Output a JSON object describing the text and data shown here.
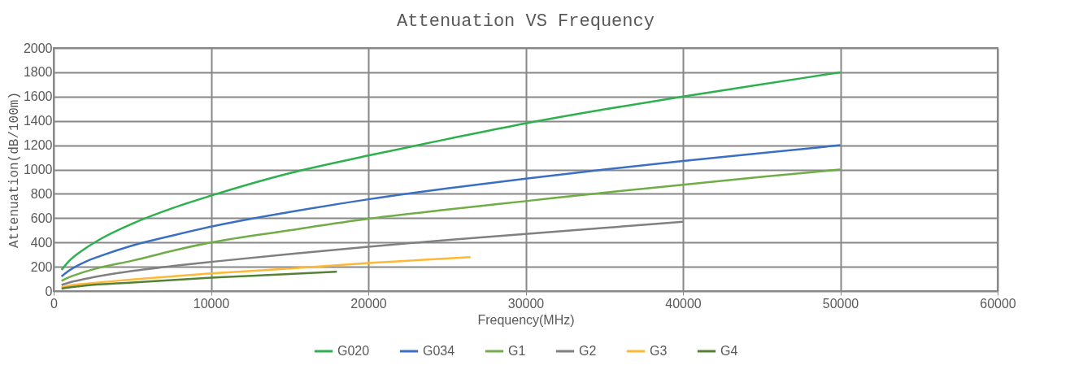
{
  "chart_data": {
    "type": "line",
    "title": "Attenuation VS Frequency",
    "xlabel": "Frequency(MHz)",
    "ylabel": "Attenuation(dB/100m)",
    "xlim": [
      0,
      60000
    ],
    "xticks": [
      0,
      10000,
      20000,
      30000,
      40000,
      50000,
      60000
    ],
    "ylim": [
      0,
      2000
    ],
    "yticks": [
      0,
      200,
      400,
      600,
      800,
      1000,
      1200,
      1400,
      1600,
      1800,
      2000
    ],
    "grid": true,
    "legend": "bottom",
    "line_style": "solid",
    "marker": "none",
    "series": [
      {
        "name": "G020",
        "color": "#2eb04f",
        "x": [
          500,
          1000,
          2000,
          3000,
          5000,
          7500,
          10000,
          15000,
          20000,
          25000,
          30000,
          35000,
          40000,
          45000,
          50000
        ],
        "values": [
          175,
          250,
          350,
          430,
          555,
          680,
          785,
          970,
          1115,
          1250,
          1380,
          1495,
          1600,
          1700,
          1800
        ]
      },
      {
        "name": "G034",
        "color": "#3b6fc4",
        "x": [
          500,
          1000,
          2000,
          3000,
          5000,
          7500,
          10000,
          15000,
          20000,
          25000,
          30000,
          35000,
          40000,
          45000,
          50000
        ],
        "values": [
          120,
          170,
          240,
          290,
          375,
          455,
          530,
          650,
          755,
          845,
          925,
          1000,
          1070,
          1135,
          1200
        ]
      },
      {
        "name": "G1",
        "color": "#70ad47",
        "x": [
          500,
          1000,
          2000,
          3000,
          5000,
          7500,
          10000,
          15000,
          20000,
          25000,
          30000,
          35000,
          40000,
          45000,
          50000
        ],
        "values": [
          85,
          115,
          160,
          195,
          250,
          330,
          400,
          500,
          595,
          670,
          740,
          810,
          875,
          940,
          1000
        ]
      },
      {
        "name": "G2",
        "color": "#808080",
        "x": [
          500,
          1000,
          2000,
          3000,
          5000,
          7500,
          10000,
          15000,
          20000,
          25000,
          30000,
          35000,
          40000
        ],
        "values": [
          50,
          70,
          100,
          125,
          165,
          205,
          240,
          305,
          365,
          420,
          470,
          520,
          570
        ]
      },
      {
        "name": "G3",
        "color": "#ffb833",
        "x": [
          500,
          1000,
          2000,
          5000,
          10000,
          15000,
          20000,
          26500
        ],
        "values": [
          30,
          45,
          60,
          95,
          145,
          185,
          230,
          280
        ]
      },
      {
        "name": "G4",
        "color": "#548235",
        "x": [
          500,
          1000,
          2000,
          5000,
          10000,
          15000,
          18000
        ],
        "values": [
          20,
          30,
          45,
          70,
          110,
          140,
          160
        ]
      }
    ]
  }
}
